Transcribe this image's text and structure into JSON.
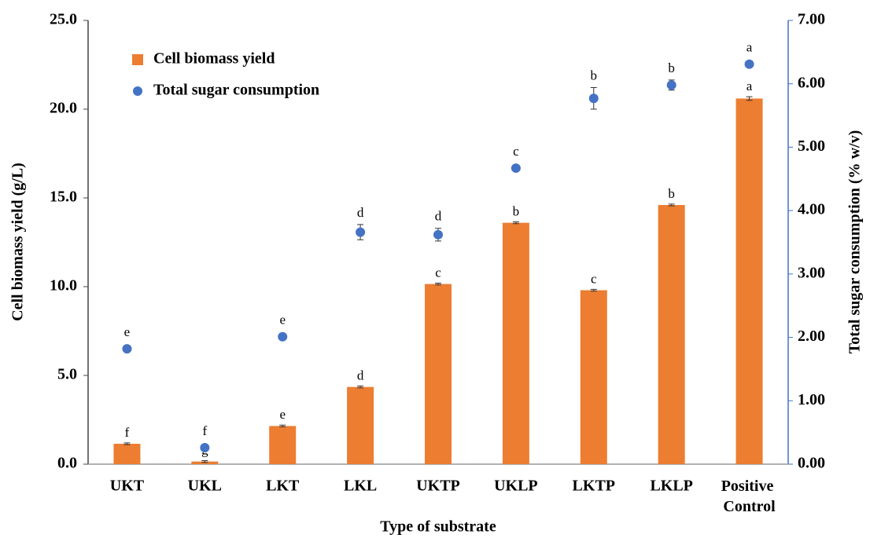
{
  "chart_data": {
    "type": "bar_scatter",
    "x_label": "Type of substrate",
    "y_label": "Cell biomass yield (g/L)",
    "y2_label": "Total sugar consumption (% w/v)",
    "categories": [
      "UKT",
      "UKL",
      "LKT",
      "LKL",
      "UKTP",
      "UKLP",
      "LKTP",
      "LKLP",
      "Positive Control"
    ],
    "ylim": [
      0,
      25
    ],
    "yticks": [
      {
        "value": 0,
        "label": "0.0"
      },
      {
        "value": 5,
        "label": "5.0"
      },
      {
        "value": 10,
        "label": "10.0"
      },
      {
        "value": 15,
        "label": "15.0"
      },
      {
        "value": 20,
        "label": "20.0"
      },
      {
        "value": 25,
        "label": "25.0"
      }
    ],
    "y2lim": [
      0,
      7
    ],
    "y2ticks": [
      {
        "value": 0,
        "label": "0.00"
      },
      {
        "value": 1,
        "label": "1.00"
      },
      {
        "value": 2,
        "label": "2.00"
      },
      {
        "value": 3,
        "label": "3.00"
      },
      {
        "value": 4,
        "label": "4.00"
      },
      {
        "value": 5,
        "label": "5.00"
      },
      {
        "value": 6,
        "label": "6.00"
      },
      {
        "value": 7,
        "label": "7.00"
      }
    ],
    "legend": "top-left",
    "series": [
      {
        "name": "Cell biomass yield",
        "type": "bar",
        "color": "#ed7d31",
        "values": [
          1.15,
          0.15,
          2.15,
          4.35,
          10.15,
          13.6,
          9.8,
          14.6,
          20.6
        ],
        "errors": [
          0.05,
          0.05,
          0.05,
          0.05,
          0.05,
          0.05,
          0.05,
          0.05,
          0.1
        ],
        "labels": [
          "f",
          "g",
          "e",
          "d",
          "c",
          "b",
          "c",
          "b",
          "a"
        ]
      },
      {
        "name": "Total sugar consumption",
        "type": "scatter",
        "axis": "y2",
        "color": "#4472c4",
        "values": [
          1.82,
          0.26,
          2.01,
          3.66,
          3.62,
          4.67,
          5.77,
          5.98,
          6.31
        ],
        "errors": [
          0.02,
          0.02,
          0.02,
          0.12,
          0.1,
          0.02,
          0.17,
          0.08,
          0.02
        ],
        "labels": [
          "e",
          "f",
          "e",
          "d",
          "d",
          "c",
          "b",
          "b",
          "a"
        ]
      }
    ]
  }
}
